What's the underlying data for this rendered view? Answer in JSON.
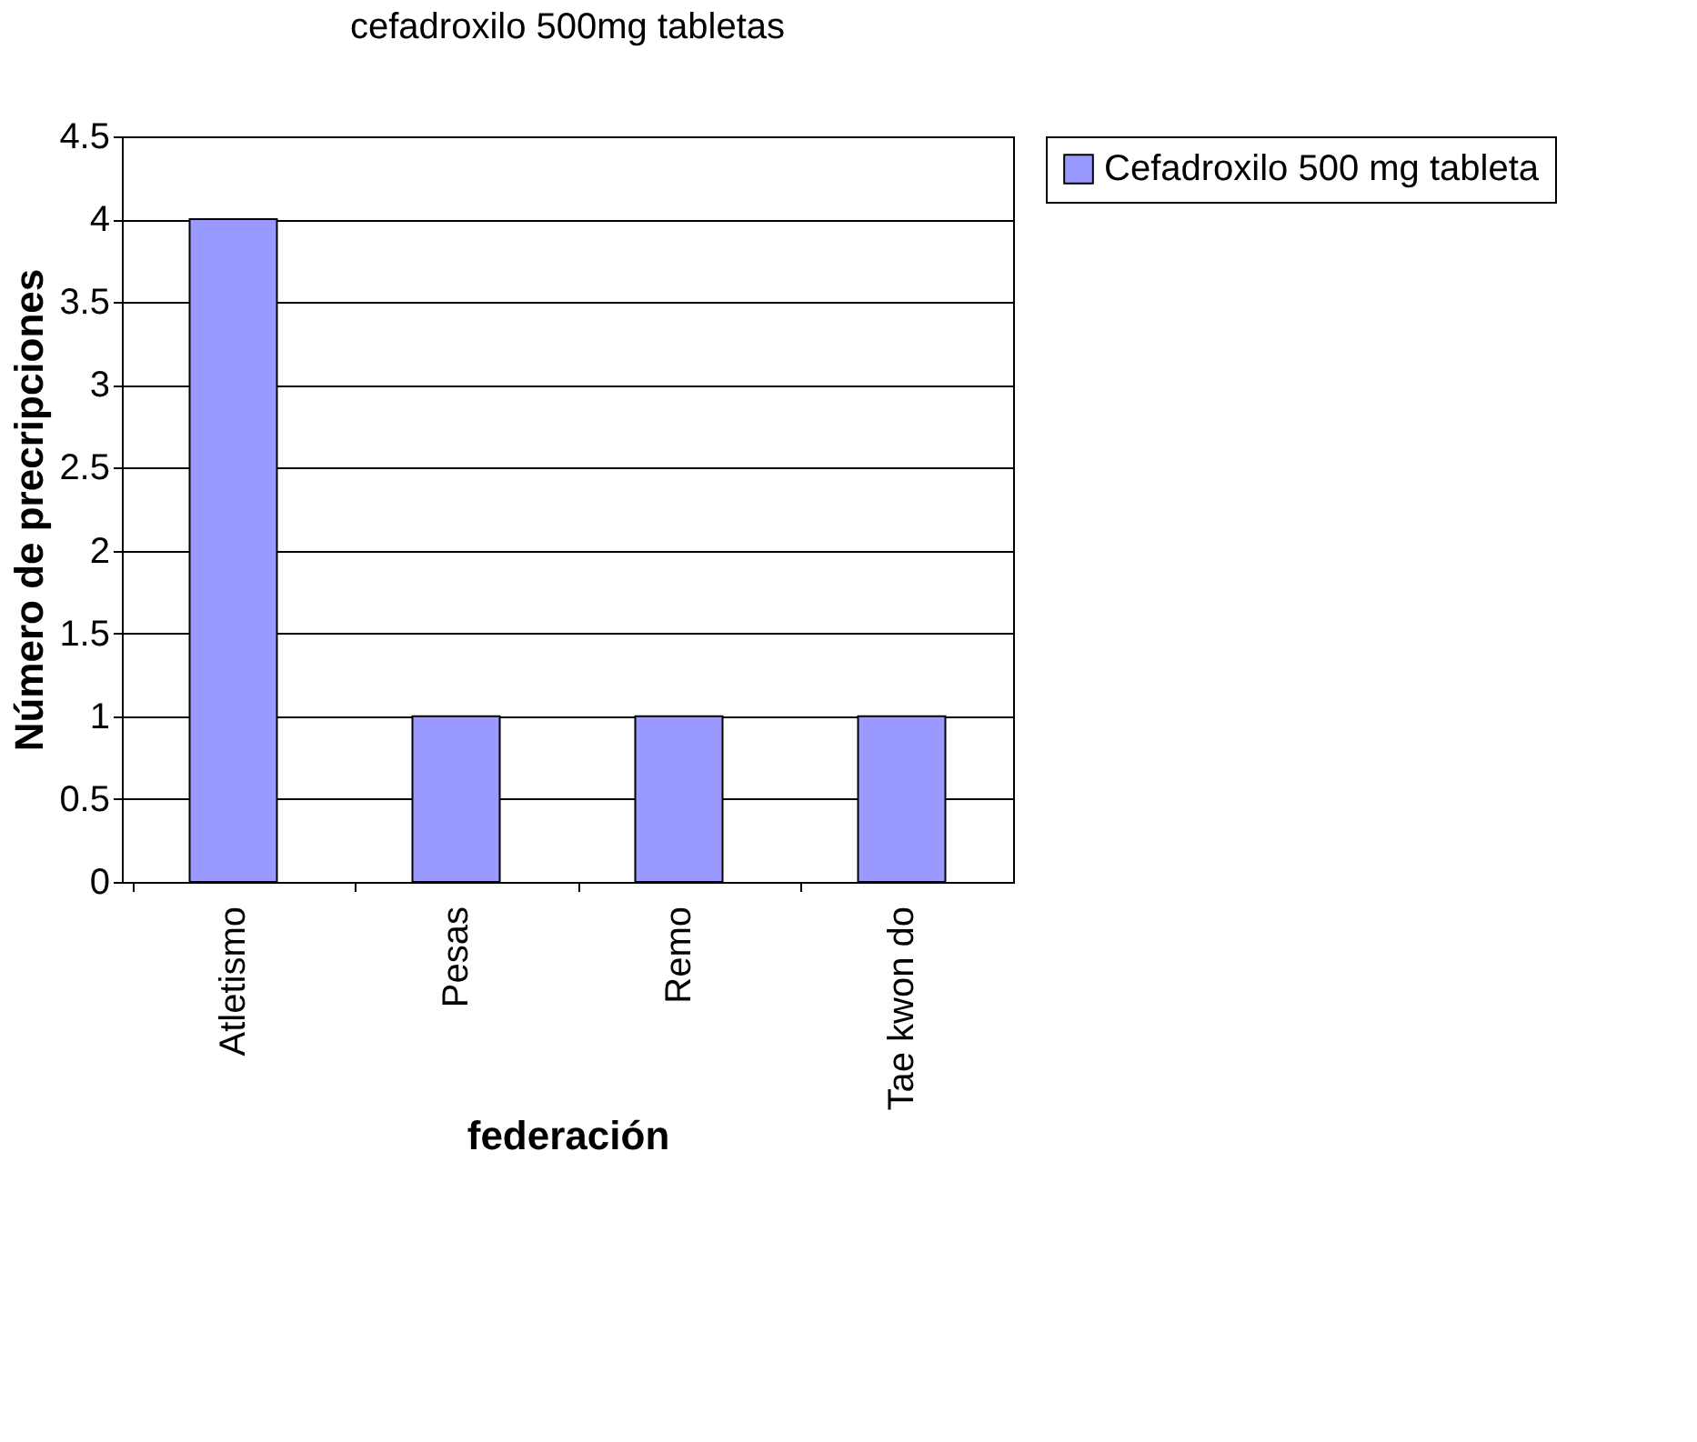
{
  "chart_data": {
    "type": "bar",
    "title": "cefadroxilo 500mg tabletas",
    "xlabel": "federación",
    "ylabel": "Número de precripciones",
    "categories": [
      "Atletismo",
      "Pesas",
      "Remo",
      "Tae kwon do"
    ],
    "series": [
      {
        "name": "Cefadroxilo 500 mg tableta",
        "color": "#9999ff",
        "values": [
          4,
          1,
          1,
          1
        ]
      }
    ],
    "ylim": [
      0,
      4.5
    ],
    "yticks": [
      0,
      0.5,
      1,
      1.5,
      2,
      2.5,
      3,
      3.5,
      4,
      4.5
    ],
    "grid": "y",
    "legend": "right"
  }
}
